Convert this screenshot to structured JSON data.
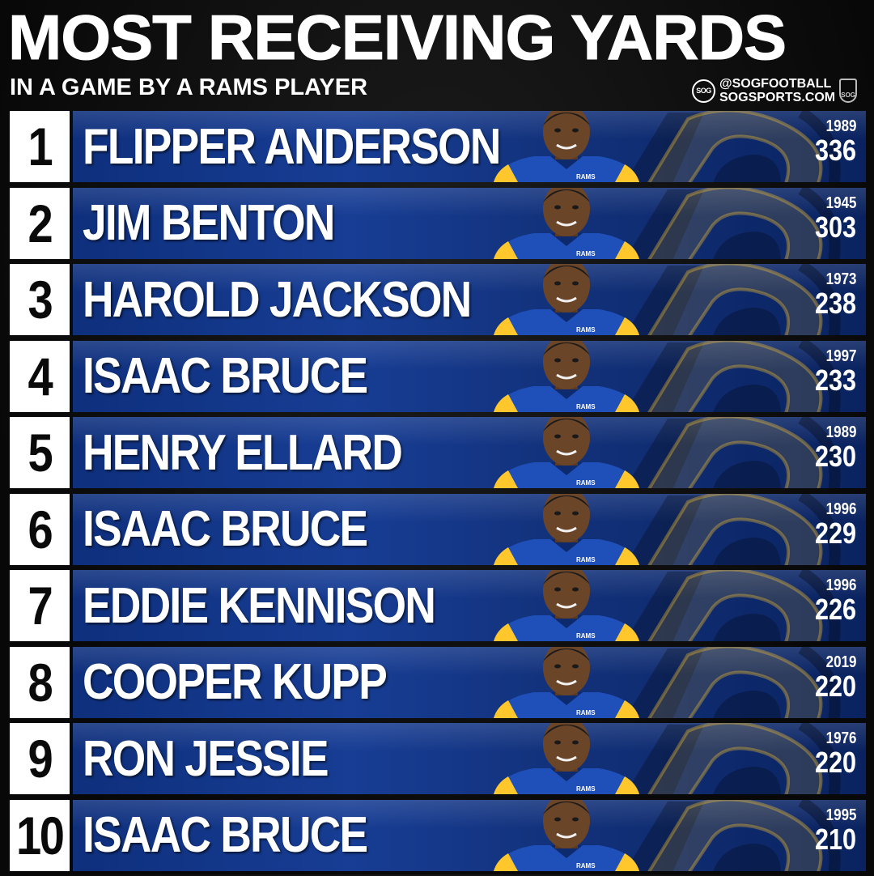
{
  "header": {
    "title": "MOST RECEIVING YARDS",
    "subtitle": "IN A GAME BY A RAMS PLAYER"
  },
  "brand": {
    "circle_text": "SOG",
    "handle": "@SOGFOOTBALL",
    "site": "SOGSPORTS.COM",
    "shield_text": "SOG"
  },
  "colors": {
    "bar_blue": "#173d94",
    "rams_gold": "#ffc72c",
    "rank_box": "#ffffff"
  },
  "rows": [
    {
      "rank": "1",
      "name": "FLIPPER ANDERSON",
      "year": "1989",
      "yards": "336",
      "jersey": "RAMS"
    },
    {
      "rank": "2",
      "name": "JIM BENTON",
      "year": "1945",
      "yards": "303",
      "jersey": "RAMS"
    },
    {
      "rank": "3",
      "name": "HAROLD JACKSON",
      "year": "1973",
      "yards": "238",
      "jersey": "RAMS"
    },
    {
      "rank": "4",
      "name": "ISAAC BRUCE",
      "year": "1997",
      "yards": "233",
      "jersey": "RAMS"
    },
    {
      "rank": "5",
      "name": "HENRY ELLARD",
      "year": "1989",
      "yards": "230",
      "jersey": "RAMS"
    },
    {
      "rank": "6",
      "name": "ISAAC BRUCE",
      "year": "1996",
      "yards": "229",
      "jersey": "RAMS"
    },
    {
      "rank": "7",
      "name": "EDDIE KENNISON",
      "year": "1996",
      "yards": "226",
      "jersey": "RAMS"
    },
    {
      "rank": "8",
      "name": "COOPER KUPP",
      "year": "2019",
      "yards": "220",
      "jersey": "RAMS"
    },
    {
      "rank": "9",
      "name": "RON JESSIE",
      "year": "1976",
      "yards": "220",
      "jersey": "RAMS"
    },
    {
      "rank": "10",
      "name": "ISAAC BRUCE",
      "year": "1995",
      "yards": "210",
      "jersey": "RAMS"
    }
  ]
}
